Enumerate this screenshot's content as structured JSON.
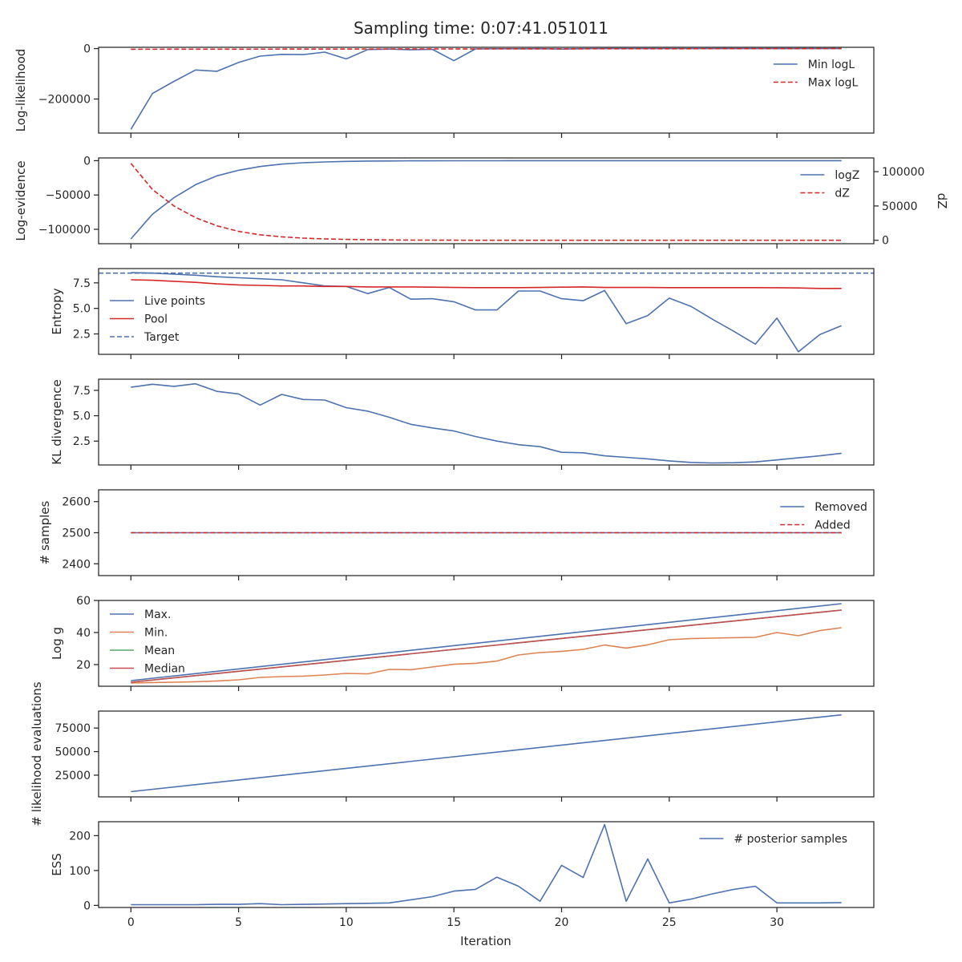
{
  "title": "Sampling time: 0:07:41.051011",
  "xlabel": "Iteration",
  "x_ticks": [
    0,
    5,
    10,
    15,
    20,
    25,
    30
  ],
  "xlim": [
    -1.5,
    34.5
  ],
  "colors": {
    "blue": "#4c72b0",
    "red": "#d62728",
    "orange": "#dd8452",
    "green": "#55a868",
    "median": "#c44e52",
    "axis": "#262626"
  },
  "chart_data": [
    {
      "type": "line",
      "ylabel": "Log-likelihood",
      "ylim": [
        -335000,
        5000
      ],
      "yticks": [
        {
          "v": 0,
          "label": "0"
        },
        {
          "v": -200000,
          "label": "−200000"
        }
      ],
      "legend_position": "top-right",
      "series": [
        {
          "name": "Min logL",
          "color": "blue",
          "dash": false,
          "x": [
            0,
            1,
            2,
            3,
            4,
            5,
            6,
            7,
            8,
            9,
            10,
            11,
            12,
            13,
            14,
            15,
            16,
            17,
            18,
            19,
            20,
            21,
            22,
            23,
            24,
            25,
            26,
            27,
            28,
            29,
            30,
            31,
            32,
            33
          ],
          "y": [
            -320000,
            -178000,
            -130000,
            -85000,
            -90000,
            -55000,
            -30000,
            -23000,
            -24000,
            -14000,
            -41000,
            -4000,
            -2000,
            -5000,
            -3000,
            -48000,
            -1500,
            -800,
            -600,
            -500,
            -2000,
            -300,
            -200,
            -200,
            -150,
            -100,
            -100,
            -80,
            -80,
            -60,
            -50,
            -40,
            -30,
            -20
          ]
        },
        {
          "name": "Max logL",
          "color": "red",
          "dash": true,
          "x": [
            0,
            33
          ],
          "y": [
            -2500,
            -200
          ]
        }
      ]
    },
    {
      "type": "line",
      "ylabel": "Log-evidence",
      "ylabel_right": "dZ",
      "ylim": [
        -121000,
        4000
      ],
      "yticks": [
        {
          "v": 0,
          "label": "0"
        },
        {
          "v": -50000,
          "label": "−50000"
        },
        {
          "v": -100000,
          "label": "−100000"
        }
      ],
      "ylim_right": [
        -5000,
        120000
      ],
      "yticks_right": [
        {
          "v": 0,
          "label": "0"
        },
        {
          "v": 50000,
          "label": "50000"
        },
        {
          "v": 100000,
          "label": "100000"
        }
      ],
      "legend_position": "top-right",
      "series": [
        {
          "name": "logZ",
          "color": "blue",
          "dash": false,
          "axis": "left",
          "x": [
            0,
            1,
            2,
            3,
            4,
            5,
            6,
            7,
            8,
            9,
            10,
            11,
            12,
            13,
            14,
            15,
            16,
            17,
            18,
            19,
            20,
            21,
            22,
            23,
            24,
            25,
            26,
            27,
            28,
            29,
            30,
            31,
            32,
            33
          ],
          "y": [
            -114000,
            -78000,
            -54000,
            -35000,
            -22000,
            -14000,
            -8500,
            -5000,
            -3000,
            -1800,
            -1000,
            -600,
            -400,
            -250,
            -150,
            -100,
            -60,
            -40,
            -30,
            -20,
            -10,
            -5,
            0,
            0,
            0,
            0,
            0,
            0,
            0,
            0,
            0,
            0,
            0,
            0
          ]
        },
        {
          "name": "dZ",
          "color": "red",
          "dash": true,
          "axis": "right",
          "x": [
            0,
            1,
            2,
            3,
            4,
            5,
            6,
            7,
            8,
            9,
            10,
            11,
            12,
            13,
            14,
            15,
            16,
            17,
            18,
            19,
            20,
            21,
            22,
            23,
            24,
            25,
            26,
            27,
            28,
            29,
            30,
            31,
            32,
            33
          ],
          "y": [
            112000,
            74000,
            50000,
            33000,
            21000,
            13000,
            8000,
            5000,
            3200,
            2000,
            1300,
            800,
            500,
            300,
            200,
            120,
            80,
            50,
            30,
            20,
            10,
            5,
            0,
            0,
            0,
            0,
            0,
            0,
            0,
            0,
            0,
            0,
            0,
            0
          ]
        }
      ]
    },
    {
      "type": "line",
      "ylabel": "Entropy",
      "ylim": [
        0.5,
        8.9
      ],
      "yticks": [
        {
          "v": 2.5,
          "label": "2.5"
        },
        {
          "v": 5.0,
          "label": "5.0"
        },
        {
          "v": 7.5,
          "label": "7.5"
        }
      ],
      "legend_position": "center-left",
      "series": [
        {
          "name": "Live points",
          "color": "blue",
          "dash": false,
          "x": [
            0,
            1,
            2,
            3,
            4,
            5,
            6,
            7,
            8,
            9,
            10,
            11,
            12,
            13,
            14,
            15,
            16,
            17,
            18,
            19,
            20,
            21,
            22,
            23,
            24,
            25,
            26,
            27,
            28,
            29,
            30,
            31,
            32,
            33
          ],
          "y": [
            8.5,
            8.45,
            8.35,
            8.25,
            8.1,
            8.0,
            7.9,
            7.8,
            7.5,
            7.2,
            7.15,
            6.45,
            7.05,
            5.9,
            5.95,
            5.65,
            4.85,
            4.85,
            6.7,
            6.7,
            5.95,
            5.75,
            6.75,
            3.5,
            4.3,
            6.0,
            5.2,
            3.95,
            2.75,
            1.5,
            4.05,
            0.75,
            2.45,
            3.3
          ]
        },
        {
          "name": "Pool",
          "color": "red",
          "dash": false,
          "x": [
            0,
            1,
            2,
            3,
            4,
            5,
            6,
            7,
            8,
            9,
            10,
            11,
            12,
            13,
            14,
            15,
            16,
            17,
            18,
            19,
            20,
            21,
            22,
            23,
            24,
            25,
            26,
            27,
            28,
            29,
            30,
            31,
            32,
            33
          ],
          "y": [
            7.8,
            7.75,
            7.65,
            7.55,
            7.4,
            7.3,
            7.25,
            7.2,
            7.2,
            7.15,
            7.15,
            7.1,
            7.1,
            7.1,
            7.08,
            7.05,
            7.03,
            7.03,
            7.03,
            7.05,
            7.08,
            7.1,
            7.05,
            7.05,
            7.05,
            7.03,
            7.03,
            7.03,
            7.03,
            7.03,
            7.02,
            7.0,
            6.95,
            6.95
          ]
        },
        {
          "name": "Target",
          "color": "blue",
          "dash": true,
          "full_width": true,
          "x": [
            -1.5,
            34.5
          ],
          "y": [
            8.45,
            8.45
          ]
        }
      ]
    },
    {
      "type": "line",
      "ylabel": "KL divergence",
      "ylim": [
        0.15,
        8.6
      ],
      "yticks": [
        {
          "v": 2.5,
          "label": "2.5"
        },
        {
          "v": 5.0,
          "label": "5.0"
        },
        {
          "v": 7.5,
          "label": "7.5"
        }
      ],
      "legend_position": "none",
      "series": [
        {
          "name": "",
          "color": "blue",
          "dash": false,
          "x": [
            0,
            1,
            2,
            3,
            4,
            5,
            6,
            7,
            8,
            9,
            10,
            11,
            12,
            13,
            14,
            15,
            16,
            17,
            18,
            19,
            20,
            21,
            22,
            23,
            24,
            25,
            26,
            27,
            28,
            29,
            30,
            31,
            32,
            33
          ],
          "y": [
            7.8,
            8.1,
            7.9,
            8.15,
            7.4,
            7.15,
            6.05,
            7.1,
            6.6,
            6.55,
            5.8,
            5.45,
            4.85,
            4.15,
            3.8,
            3.5,
            2.95,
            2.5,
            2.15,
            1.95,
            1.4,
            1.35,
            1.05,
            0.9,
            0.75,
            0.55,
            0.4,
            0.35,
            0.37,
            0.45,
            0.65,
            0.85,
            1.05,
            1.3
          ]
        }
      ]
    },
    {
      "type": "line",
      "ylabel": "# samples",
      "ylim": [
        2362,
        2638
      ],
      "yticks": [
        {
          "v": 2400,
          "label": "2400"
        },
        {
          "v": 2500,
          "label": "2500"
        },
        {
          "v": 2600,
          "label": "2600"
        }
      ],
      "legend_position": "top-right",
      "series": [
        {
          "name": "Removed",
          "color": "blue",
          "dash": false,
          "x": [
            0,
            33
          ],
          "y": [
            2500,
            2500
          ]
        },
        {
          "name": "Added",
          "color": "red",
          "dash": true,
          "x": [
            0,
            33
          ],
          "y": [
            2500,
            2500
          ]
        }
      ]
    },
    {
      "type": "line",
      "ylabel": "Log g",
      "ylim": [
        6.5,
        60
      ],
      "yticks": [
        {
          "v": 20,
          "label": "20"
        },
        {
          "v": 40,
          "label": "40"
        },
        {
          "v": 60,
          "label": "60"
        }
      ],
      "legend_position": "top-left",
      "series": [
        {
          "name": "Max.",
          "color": "blue",
          "dash": false,
          "x": [
            0,
            33
          ],
          "y": [
            10,
            58
          ]
        },
        {
          "name": "Min.",
          "color": "orange",
          "dash": false,
          "x": [
            0,
            1,
            2,
            3,
            4,
            5,
            6,
            7,
            8,
            9,
            10,
            11,
            12,
            13,
            14,
            15,
            16,
            17,
            18,
            19,
            20,
            21,
            22,
            23,
            24,
            25,
            26,
            27,
            28,
            29,
            30,
            31,
            32,
            33
          ],
          "y": [
            8.5,
            8.8,
            9.0,
            9.3,
            9.8,
            10.5,
            12,
            12.5,
            12.8,
            13.5,
            14.5,
            14.2,
            17,
            16.8,
            18.5,
            20.2,
            20.8,
            22.2,
            26,
            27.5,
            28.2,
            29.5,
            32.2,
            30.3,
            32.3,
            35.5,
            36.2,
            36.5,
            36.8,
            37,
            40,
            38,
            41.2,
            43
          ]
        },
        {
          "name": "Mean",
          "color": "green",
          "dash": false,
          "x": [
            0,
            33
          ],
          "y": [
            9,
            54
          ]
        },
        {
          "name": "Median",
          "color": "median",
          "dash": false,
          "x": [
            0,
            33
          ],
          "y": [
            9,
            54
          ]
        }
      ]
    },
    {
      "type": "line",
      "ylabel": "# likelihood evaluations",
      "ylim": [
        2000,
        93000
      ],
      "yticks": [
        {
          "v": 25000,
          "label": "25000"
        },
        {
          "v": 50000,
          "label": "50000"
        },
        {
          "v": 75000,
          "label": "75000"
        }
      ],
      "legend_position": "none",
      "series": [
        {
          "name": "",
          "color": "blue",
          "dash": false,
          "x": [
            0,
            33
          ],
          "y": [
            7500,
            89000
          ]
        }
      ]
    },
    {
      "type": "line",
      "ylabel": "ESS",
      "ylim": [
        -6,
        240
      ],
      "yticks": [
        {
          "v": 0,
          "label": "0"
        },
        {
          "v": 100,
          "label": "100"
        },
        {
          "v": 200,
          "label": "200"
        }
      ],
      "legend_position": "top-right",
      "series": [
        {
          "name": "# posterior samples",
          "color": "blue",
          "dash": false,
          "x": [
            0,
            1,
            2,
            3,
            4,
            5,
            6,
            7,
            8,
            9,
            10,
            11,
            12,
            13,
            14,
            15,
            16,
            17,
            18,
            19,
            20,
            21,
            22,
            23,
            24,
            25,
            26,
            27,
            28,
            29,
            30,
            31,
            32,
            33
          ],
          "y": [
            2,
            2,
            2,
            2,
            3,
            3,
            5,
            2,
            3,
            4,
            5,
            6,
            7,
            16,
            25,
            41,
            46,
            81,
            55,
            12,
            115,
            80,
            232,
            12,
            133,
            7,
            18,
            33,
            46,
            55,
            7,
            7,
            7,
            8
          ]
        }
      ]
    }
  ]
}
